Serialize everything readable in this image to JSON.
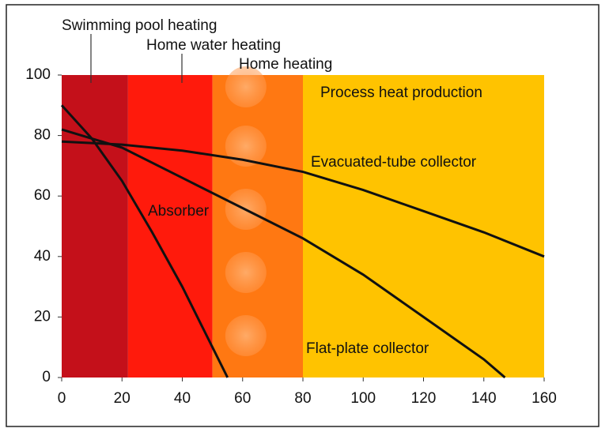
{
  "chart_data": {
    "type": "line",
    "regions": [
      {
        "label": "Swimming pool heating",
        "start": 0,
        "end": 22,
        "color": "#c4101a"
      },
      {
        "label": "Home water heating",
        "start": 22,
        "end": 50,
        "color": "#ff1a0c"
      },
      {
        "label": "Home heating",
        "start": 50,
        "end": 80,
        "color": "#ff7812"
      },
      {
        "label": "Process heat production",
        "start": 80,
        "end": 160,
        "color": "#ffc300"
      }
    ],
    "series": [
      {
        "name": "Absorber",
        "color": "#111111",
        "x": [
          0,
          10,
          20,
          30,
          40,
          50,
          55
        ],
        "values": [
          90,
          79,
          65,
          48,
          30,
          10,
          0
        ]
      },
      {
        "name": "Evacuated-tube collector",
        "color": "#111111",
        "x": [
          0,
          20,
          40,
          60,
          80,
          100,
          120,
          140,
          160
        ],
        "values": [
          78,
          77,
          75,
          72,
          68,
          62,
          55,
          48,
          40
        ]
      },
      {
        "name": "Flat-plate collector",
        "color": "#111111",
        "x": [
          0,
          20,
          40,
          60,
          80,
          100,
          120,
          140,
          147
        ],
        "values": [
          82,
          76,
          66,
          56,
          46,
          34,
          20,
          6,
          0
        ]
      }
    ],
    "xlim": [
      0,
      160
    ],
    "xticks": [
      0,
      20,
      40,
      60,
      80,
      100,
      120,
      140,
      160
    ],
    "ylim": [
      0,
      100
    ],
    "yticks": [
      0,
      20,
      40,
      60,
      80,
      100
    ]
  }
}
